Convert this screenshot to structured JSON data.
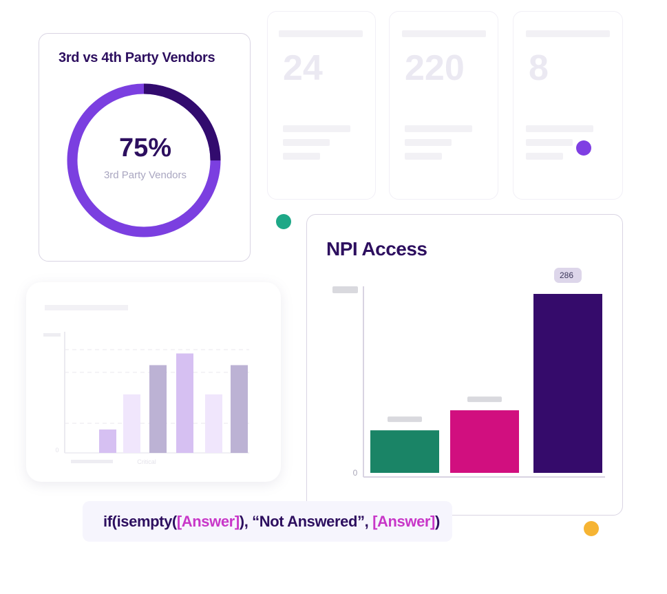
{
  "donut_card": {
    "title": "3rd vs 4th Party Vendors",
    "percent_label": "75%",
    "percent_value": 75,
    "subtitle": "3rd Party Vendors",
    "colors": {
      "major": "#7b3fe0",
      "minor": "#320b6e"
    }
  },
  "stat_cards": [
    {
      "value": "24"
    },
    {
      "value": "220"
    },
    {
      "value": "8"
    }
  ],
  "faded_chart": {
    "y_zero": "0",
    "category_label": "Critical",
    "values": [
      20,
      50,
      75,
      85,
      50,
      75
    ],
    "colors": [
      "#d6c0f2",
      "#f0e6fc",
      "#bcb2d4",
      "#d6c0f2",
      "#f0e6fc",
      "#bcb2d4"
    ]
  },
  "chart_data": {
    "type": "bar",
    "title": "NPI Access",
    "y_zero_label": "0",
    "categories": [
      "",
      "",
      ""
    ],
    "values": [
      68,
      100,
      286
    ],
    "ylim": [
      0,
      286
    ],
    "data_labels": [
      "",
      "",
      "286"
    ],
    "colors": [
      "#1a8466",
      "#d10f7f",
      "#350b6b"
    ]
  },
  "formula": {
    "prefix": "if(isempty(",
    "arg1": "[Answer]",
    "middle": "), “Not Answered”, ",
    "arg2": "[Answer]",
    "suffix": ")"
  },
  "decor_colors": {
    "purple": "#7f3fe3",
    "teal": "#1ea887",
    "gold": "#f6b433"
  }
}
